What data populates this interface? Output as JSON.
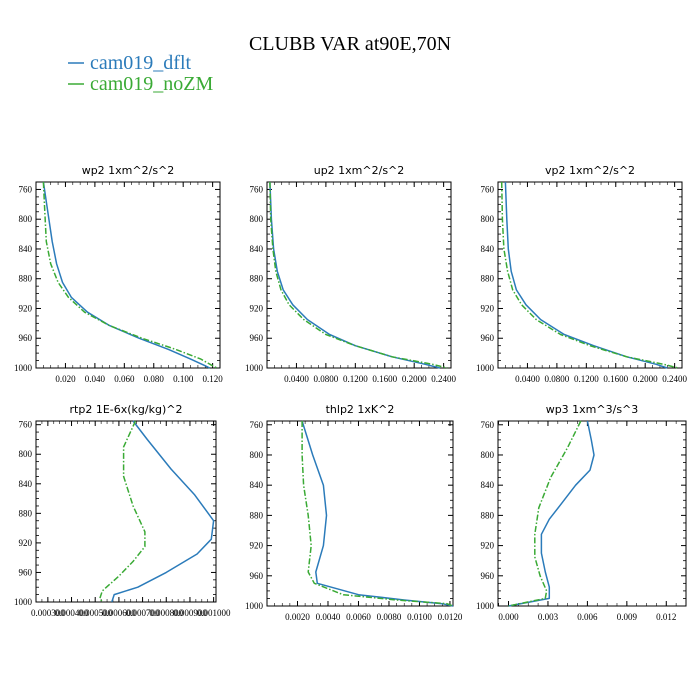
{
  "figure": {
    "title": "CLUBB VAR at90E,70N",
    "legend": [
      {
        "label": "cam019_dflt",
        "color": "#2b7bba"
      },
      {
        "label": "cam019_noZM",
        "color": "#3aaa35"
      }
    ]
  },
  "chart_data": [
    {
      "type": "line",
      "title": "wp2  1xm^2/s^2",
      "xlim": [
        0.0,
        0.125
      ],
      "ylim": [
        1000,
        750
      ],
      "y_ticks": [
        760,
        800,
        840,
        880,
        920,
        960,
        1000
      ],
      "x_ticks": [
        0.02,
        0.04,
        0.06,
        0.08,
        0.1,
        0.12
      ],
      "x_tick_labels": [
        "0.020",
        "0.040",
        "0.060",
        "0.080",
        "0.100",
        "0.120"
      ],
      "series": [
        {
          "name": "cam019_dflt",
          "color": "#2b7bba",
          "dash": "solid",
          "points": [
            [
              0.005,
              750
            ],
            [
              0.008,
              790
            ],
            [
              0.011,
              830
            ],
            [
              0.014,
              860
            ],
            [
              0.018,
              885
            ],
            [
              0.024,
              905
            ],
            [
              0.035,
              925
            ],
            [
              0.05,
              943
            ],
            [
              0.07,
              960
            ],
            [
              0.09,
              975
            ],
            [
              0.105,
              988
            ],
            [
              0.115,
              997
            ],
            [
              0.118,
              1000
            ]
          ]
        },
        {
          "name": "cam019_noZM",
          "color": "#3aaa35",
          "dash": "dashdot",
          "points": [
            [
              0.005,
              750
            ],
            [
              0.006,
              790
            ],
            [
              0.007,
              830
            ],
            [
              0.01,
              860
            ],
            [
              0.015,
              885
            ],
            [
              0.022,
              905
            ],
            [
              0.033,
              925
            ],
            [
              0.05,
              943
            ],
            [
              0.072,
              960
            ],
            [
              0.095,
              975
            ],
            [
              0.112,
              988
            ],
            [
              0.12,
              997
            ],
            [
              0.123,
              1000
            ]
          ]
        }
      ]
    },
    {
      "type": "line",
      "title": "up2  1xm^2/s^2",
      "xlim": [
        0.0,
        0.25
      ],
      "ylim": [
        1000,
        750
      ],
      "y_ticks": [
        760,
        800,
        840,
        880,
        920,
        960,
        1000
      ],
      "x_ticks": [
        0.04,
        0.08,
        0.12,
        0.16,
        0.2,
        0.24
      ],
      "x_tick_labels": [
        "0.0400",
        "0.0800",
        "0.1200",
        "0.1600",
        "0.2000",
        "0.2400"
      ],
      "series": [
        {
          "name": "cam019_dflt",
          "color": "#2b7bba",
          "dash": "solid",
          "points": [
            [
              0.004,
              750
            ],
            [
              0.006,
              800
            ],
            [
              0.009,
              840
            ],
            [
              0.014,
              870
            ],
            [
              0.022,
              895
            ],
            [
              0.035,
              915
            ],
            [
              0.055,
              935
            ],
            [
              0.085,
              955
            ],
            [
              0.12,
              970
            ],
            [
              0.17,
              985
            ],
            [
              0.215,
              995
            ],
            [
              0.235,
              1000
            ]
          ]
        },
        {
          "name": "cam019_noZM",
          "color": "#3aaa35",
          "dash": "dashdot",
          "points": [
            [
              0.004,
              750
            ],
            [
              0.005,
              800
            ],
            [
              0.008,
              840
            ],
            [
              0.012,
              870
            ],
            [
              0.019,
              895
            ],
            [
              0.03,
              915
            ],
            [
              0.05,
              935
            ],
            [
              0.08,
              955
            ],
            [
              0.12,
              970
            ],
            [
              0.17,
              985
            ],
            [
              0.225,
              995
            ],
            [
              0.245,
              1000
            ]
          ]
        }
      ]
    },
    {
      "type": "line",
      "title": "vp2  1xm^2/s^2",
      "xlim": [
        0.0,
        0.25
      ],
      "ylim": [
        1000,
        750
      ],
      "y_ticks": [
        760,
        800,
        840,
        880,
        920,
        960,
        1000
      ],
      "x_ticks": [
        0.04,
        0.08,
        0.12,
        0.16,
        0.2,
        0.24
      ],
      "x_tick_labels": [
        "0.0400",
        "0.0800",
        "0.1200",
        "0.1600",
        "0.2000",
        "0.2400"
      ],
      "series": [
        {
          "name": "cam019_dflt",
          "color": "#2b7bba",
          "dash": "solid",
          "points": [
            [
              0.01,
              750
            ],
            [
              0.012,
              800
            ],
            [
              0.014,
              840
            ],
            [
              0.018,
              870
            ],
            [
              0.025,
              895
            ],
            [
              0.038,
              915
            ],
            [
              0.058,
              935
            ],
            [
              0.09,
              955
            ],
            [
              0.13,
              970
            ],
            [
              0.175,
              985
            ],
            [
              0.215,
              995
            ],
            [
              0.23,
              1000
            ]
          ]
        },
        {
          "name": "cam019_noZM",
          "color": "#3aaa35",
          "dash": "dashdot",
          "points": [
            [
              0.005,
              750
            ],
            [
              0.006,
              800
            ],
            [
              0.008,
              840
            ],
            [
              0.013,
              870
            ],
            [
              0.02,
              895
            ],
            [
              0.032,
              915
            ],
            [
              0.052,
              935
            ],
            [
              0.085,
              955
            ],
            [
              0.125,
              970
            ],
            [
              0.175,
              985
            ],
            [
              0.225,
              995
            ],
            [
              0.245,
              1000
            ]
          ]
        }
      ]
    },
    {
      "type": "line",
      "title": "rtp2  1E-6x(kg/kg)^2",
      "xlim": [
        0.00025,
        0.00101
      ],
      "ylim": [
        1000,
        755
      ],
      "y_ticks": [
        760,
        800,
        840,
        880,
        920,
        960,
        1000
      ],
      "x_ticks": [
        0.0003,
        0.0004,
        0.0005,
        0.0006,
        0.0007,
        0.0008,
        0.0009,
        0.001
      ],
      "x_tick_labels": [
        "0.000300",
        "0.000400",
        "0.000500",
        "0.000600",
        "0.000700",
        "0.000800",
        "0.000900",
        "0.001000"
      ],
      "series": [
        {
          "name": "cam019_dflt",
          "color": "#2b7bba",
          "dash": "solid",
          "points": [
            [
              0.00066,
              755
            ],
            [
              0.00072,
              780
            ],
            [
              0.00082,
              820
            ],
            [
              0.00092,
              855
            ],
            [
              0.001,
              890
            ],
            [
              0.00099,
              915
            ],
            [
              0.00093,
              935
            ],
            [
              0.0008,
              960
            ],
            [
              0.00068,
              980
            ],
            [
              0.00058,
              990
            ],
            [
              0.00057,
              1000
            ]
          ]
        },
        {
          "name": "cam019_noZM",
          "color": "#3aaa35",
          "dash": "dashdot",
          "points": [
            [
              0.00067,
              755
            ],
            [
              0.00062,
              790
            ],
            [
              0.00062,
              830
            ],
            [
              0.00066,
              870
            ],
            [
              0.00071,
              905
            ],
            [
              0.00071,
              925
            ],
            [
              0.00066,
              945
            ],
            [
              0.0006,
              965
            ],
            [
              0.00053,
              985
            ],
            [
              0.00052,
              995
            ],
            [
              0.00053,
              1000
            ]
          ]
        }
      ]
    },
    {
      "type": "line",
      "title": "thlp2  1xK^2",
      "xlim": [
        0.0,
        0.0122
      ],
      "ylim": [
        1000,
        755
      ],
      "y_ticks": [
        760,
        800,
        840,
        880,
        920,
        960,
        1000
      ],
      "x_ticks": [
        0.002,
        0.004,
        0.006,
        0.008,
        0.01,
        0.012
      ],
      "x_tick_labels": [
        "0.0020",
        "0.0040",
        "0.0060",
        "0.0080",
        "0.0100",
        "0.0120"
      ],
      "series": [
        {
          "name": "cam019_dflt",
          "color": "#2b7bba",
          "dash": "solid",
          "points": [
            [
              0.0023,
              755
            ],
            [
              0.003,
              800
            ],
            [
              0.0037,
              840
            ],
            [
              0.0039,
              880
            ],
            [
              0.0037,
              920
            ],
            [
              0.0032,
              955
            ],
            [
              0.0033,
              970
            ],
            [
              0.006,
              985
            ],
            [
              0.009,
              992
            ],
            [
              0.0115,
              997
            ],
            [
              0.0122,
              1000
            ]
          ]
        },
        {
          "name": "cam019_noZM",
          "color": "#3aaa35",
          "dash": "dashdot",
          "points": [
            [
              0.0023,
              755
            ],
            [
              0.0023,
              800
            ],
            [
              0.0024,
              840
            ],
            [
              0.0027,
              880
            ],
            [
              0.0029,
              920
            ],
            [
              0.0027,
              955
            ],
            [
              0.0031,
              970
            ],
            [
              0.005,
              985
            ],
            [
              0.0085,
              992
            ],
            [
              0.0118,
              997
            ],
            [
              0.0122,
              1000
            ]
          ]
        }
      ]
    },
    {
      "type": "line",
      "title": "wp3  1xm^3/s^3",
      "xlim": [
        -0.0008,
        0.0135
      ],
      "ylim": [
        1000,
        755
      ],
      "y_ticks": [
        760,
        800,
        840,
        880,
        920,
        960,
        1000
      ],
      "x_ticks": [
        0.0,
        0.003,
        0.006,
        0.009,
        0.012
      ],
      "x_tick_labels": [
        "0.000",
        "0.003",
        "0.006",
        "0.009",
        "0.012"
      ],
      "series": [
        {
          "name": "cam019_dflt",
          "color": "#2b7bba",
          "dash": "solid",
          "points": [
            [
              0.006,
              755
            ],
            [
              0.0063,
              780
            ],
            [
              0.0065,
              800
            ],
            [
              0.0062,
              820
            ],
            [
              0.0051,
              840
            ],
            [
              0.004,
              865
            ],
            [
              0.0031,
              885
            ],
            [
              0.0025,
              905
            ],
            [
              0.0025,
              930
            ],
            [
              0.0028,
              955
            ],
            [
              0.0031,
              975
            ],
            [
              0.0031,
              990
            ],
            [
              0.0,
              1000
            ]
          ]
        },
        {
          "name": "cam019_noZM",
          "color": "#3aaa35",
          "dash": "dashdot",
          "points": [
            [
              0.0055,
              755
            ],
            [
              0.0045,
              790
            ],
            [
              0.0032,
              830
            ],
            [
              0.0023,
              870
            ],
            [
              0.002,
              905
            ],
            [
              0.002,
              935
            ],
            [
              0.0024,
              960
            ],
            [
              0.0029,
              980
            ],
            [
              0.0028,
              990
            ],
            [
              0.0,
              1000
            ]
          ]
        }
      ]
    }
  ]
}
